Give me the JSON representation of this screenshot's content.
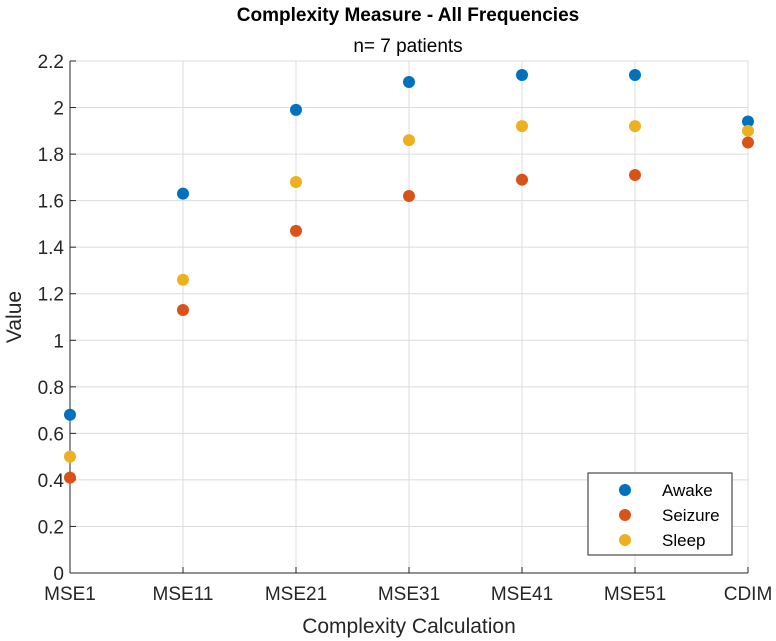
{
  "chart_data": {
    "type": "scatter",
    "title": "Complexity Measure - All Frequencies",
    "subtitle": "n= 7 patients",
    "xlabel": "Complexity Calculation",
    "ylabel": "Value",
    "categories": [
      "MSE1",
      "MSE11",
      "MSE21",
      "MSE31",
      "MSE41",
      "MSE51",
      "CDIM"
    ],
    "ylim": [
      0,
      2.2
    ],
    "yticks": [
      0,
      0.2,
      0.4,
      0.6,
      0.8,
      1,
      1.2,
      1.4,
      1.6,
      1.8,
      2,
      2.2
    ],
    "ytick_labels": [
      "0",
      "0.2",
      "0.4",
      "0.6",
      "0.8",
      "1",
      "1.2",
      "1.4",
      "1.6",
      "1.8",
      "2",
      "2.2"
    ],
    "grid": true,
    "legend_position": "bottom-right",
    "series": [
      {
        "name": "Awake",
        "color": "#0072BD",
        "values": [
          0.68,
          1.63,
          1.99,
          2.11,
          2.14,
          2.14,
          1.94
        ]
      },
      {
        "name": "Seizure",
        "color": "#D95319",
        "values": [
          0.41,
          1.13,
          1.47,
          1.62,
          1.69,
          1.71,
          1.85
        ]
      },
      {
        "name": "Sleep",
        "color": "#EDB120",
        "values": [
          0.5,
          1.26,
          1.68,
          1.86,
          1.92,
          1.92,
          1.9
        ]
      }
    ]
  }
}
